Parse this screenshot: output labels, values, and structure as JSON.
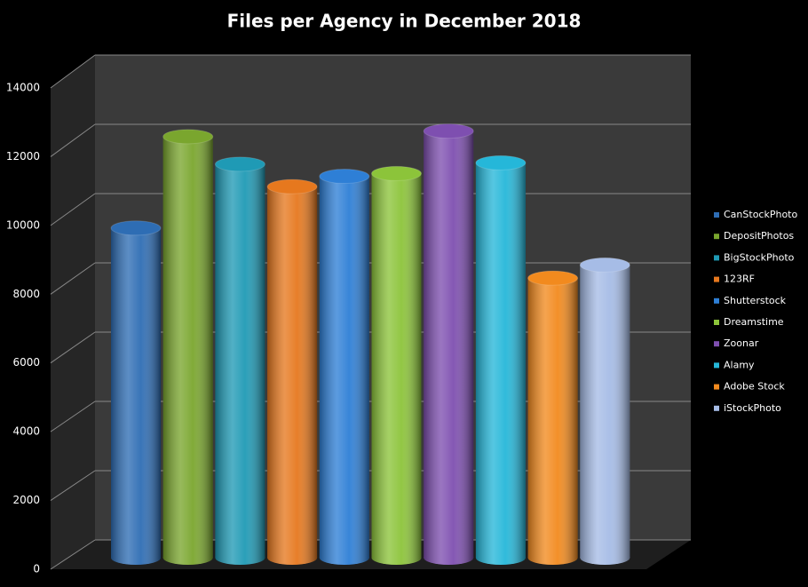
{
  "chart_data": {
    "type": "cylinder-bar",
    "title": "Files per Agency in December 2018",
    "categories": [
      "CanStockPhoto",
      "DepositPhotos",
      "BigStockPhoto",
      "123RF",
      "Shutterstock",
      "Dreamstime",
      "Zoonar",
      "Alamy",
      "Adobe Stock",
      "iStockPhoto"
    ],
    "values": [
      9450,
      12100,
      11300,
      10650,
      10950,
      11030,
      12260,
      11340,
      8000,
      8380
    ],
    "colors": [
      "#2e6db4",
      "#7aa62e",
      "#1f9ab5",
      "#e6781e",
      "#2e7fd6",
      "#8cc43a",
      "#7e4fb0",
      "#25b7d9",
      "#f28a1e",
      "#a6bce6"
    ],
    "ylim": [
      0,
      14000
    ],
    "yticks": [
      0,
      2000,
      4000,
      6000,
      8000,
      10000,
      12000,
      14000
    ],
    "grid": true,
    "legend": "right"
  }
}
